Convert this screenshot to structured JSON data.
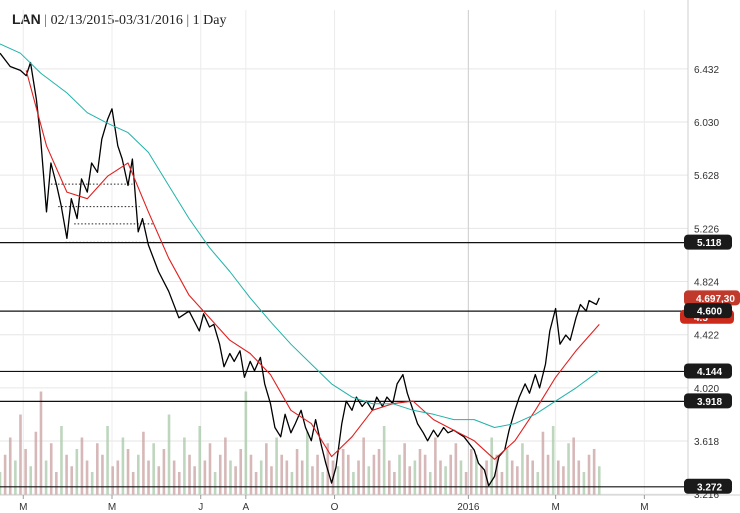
{
  "header": {
    "symbol": "LAN",
    "range": "02/13/2015-03/31/2016",
    "interval": "1 Day"
  },
  "chart_data": {
    "type": "line",
    "title": "LAN | 02/13/2015-03/31/2016 | 1 Day",
    "xlabel": "",
    "ylabel": "",
    "ylim": [
      3.21,
      6.65
    ],
    "grid": true,
    "x_tick_labels": [
      {
        "date": "2015-03-01",
        "label": "M"
      },
      {
        "date": "2015-05-01",
        "label": "M"
      },
      {
        "date": "2015-07-01",
        "label": "J"
      },
      {
        "date": "2015-08-01",
        "label": "A"
      },
      {
        "date": "2015-10-01",
        "label": "O"
      },
      {
        "date": "2016-01-01",
        "label": "2016"
      },
      {
        "date": "2016-03-01",
        "label": "M"
      },
      {
        "date": "2016-05-01",
        "label": "M"
      }
    ],
    "y_tick_labels": [
      "6.432",
      "6.030",
      "5.628",
      "5.226",
      "4.824",
      "4.422",
      "4.020",
      "3.618",
      "3.216"
    ],
    "y_ticks": [
      6.432,
      6.03,
      5.628,
      5.226,
      4.824,
      4.422,
      4.02,
      3.618,
      3.216
    ],
    "horizontal_levels": [
      {
        "value": 5.118,
        "label": "5.118",
        "color": "#111111"
      },
      {
        "value": 4.6,
        "label": "4.600",
        "color": "#111111"
      },
      {
        "value": 4.144,
        "label": "4.144",
        "color": "#111111"
      },
      {
        "value": 3.918,
        "label": "3.918",
        "color": "#111111"
      },
      {
        "value": 3.272,
        "label": "3.272",
        "color": "#111111"
      }
    ],
    "short_levels": [
      {
        "value": 5.56,
        "from": "2015-03-20",
        "to": "2015-05-15"
      },
      {
        "value": 5.39,
        "from": "2015-03-25",
        "to": "2015-05-20"
      },
      {
        "value": 5.26,
        "from": "2015-04-05",
        "to": "2015-05-30"
      },
      {
        "value": 5.12,
        "from": "2015-03-30",
        "to": "2015-05-30"
      }
    ],
    "last_price_label": "4.697,30",
    "last_price_color": "#c0392b",
    "hidden_value_label": "4.5",
    "series": [
      {
        "color": "#000000",
        "points": [
          [
            "2015-02-13",
            6.55
          ],
          [
            "2015-02-20",
            6.45
          ],
          [
            "2015-02-27",
            6.42
          ],
          [
            "2015-03-03",
            6.38
          ],
          [
            "2015-03-06",
            6.48
          ],
          [
            "2015-03-10",
            6.2
          ],
          [
            "2015-03-13",
            5.9
          ],
          [
            "2015-03-17",
            5.35
          ],
          [
            "2015-03-20",
            5.72
          ],
          [
            "2015-03-24",
            5.55
          ],
          [
            "2015-03-27",
            5.4
          ],
          [
            "2015-03-31",
            5.15
          ],
          [
            "2015-04-03",
            5.45
          ],
          [
            "2015-04-07",
            5.3
          ],
          [
            "2015-04-10",
            5.6
          ],
          [
            "2015-04-14",
            5.5
          ],
          [
            "2015-04-17",
            5.72
          ],
          [
            "2015-04-21",
            5.65
          ],
          [
            "2015-04-24",
            5.9
          ],
          [
            "2015-04-28",
            6.05
          ],
          [
            "2015-05-01",
            6.13
          ],
          [
            "2015-05-05",
            5.85
          ],
          [
            "2015-05-08",
            5.75
          ],
          [
            "2015-05-12",
            5.55
          ],
          [
            "2015-05-15",
            5.75
          ],
          [
            "2015-05-19",
            5.2
          ],
          [
            "2015-05-22",
            5.3
          ],
          [
            "2015-05-26",
            5.1
          ],
          [
            "2015-06-02",
            4.9
          ],
          [
            "2015-06-09",
            4.75
          ],
          [
            "2015-06-16",
            4.55
          ],
          [
            "2015-06-23",
            4.6
          ],
          [
            "2015-06-30",
            4.45
          ],
          [
            "2015-07-03",
            4.58
          ],
          [
            "2015-07-07",
            4.48
          ],
          [
            "2015-07-10",
            4.5
          ],
          [
            "2015-07-14",
            4.35
          ],
          [
            "2015-07-17",
            4.18
          ],
          [
            "2015-07-21",
            4.28
          ],
          [
            "2015-07-24",
            4.22
          ],
          [
            "2015-07-28",
            4.3
          ],
          [
            "2015-07-31",
            4.1
          ],
          [
            "2015-08-04",
            4.22
          ],
          [
            "2015-08-07",
            4.15
          ],
          [
            "2015-08-11",
            4.25
          ],
          [
            "2015-08-14",
            4.05
          ],
          [
            "2015-08-18",
            3.9
          ],
          [
            "2015-08-21",
            3.72
          ],
          [
            "2015-08-25",
            3.65
          ],
          [
            "2015-08-28",
            3.82
          ],
          [
            "2015-09-01",
            3.68
          ],
          [
            "2015-09-04",
            3.75
          ],
          [
            "2015-09-08",
            3.85
          ],
          [
            "2015-09-11",
            3.72
          ],
          [
            "2015-09-15",
            3.62
          ],
          [
            "2015-09-18",
            3.78
          ],
          [
            "2015-09-22",
            3.58
          ],
          [
            "2015-09-25",
            3.45
          ],
          [
            "2015-09-29",
            3.3
          ],
          [
            "2015-10-02",
            3.42
          ],
          [
            "2015-10-06",
            3.75
          ],
          [
            "2015-10-09",
            3.92
          ],
          [
            "2015-10-13",
            3.85
          ],
          [
            "2015-10-16",
            3.95
          ],
          [
            "2015-10-20",
            3.88
          ],
          [
            "2015-10-23",
            3.92
          ],
          [
            "2015-10-27",
            3.85
          ],
          [
            "2015-10-30",
            3.95
          ],
          [
            "2015-11-03",
            3.88
          ],
          [
            "2015-11-06",
            3.95
          ],
          [
            "2015-11-10",
            3.9
          ],
          [
            "2015-11-13",
            4.05
          ],
          [
            "2015-11-17",
            4.12
          ],
          [
            "2015-11-20",
            3.98
          ],
          [
            "2015-11-24",
            3.85
          ],
          [
            "2015-11-27",
            3.75
          ],
          [
            "2015-12-01",
            3.68
          ],
          [
            "2015-12-04",
            3.62
          ],
          [
            "2015-12-08",
            3.7
          ],
          [
            "2015-12-11",
            3.65
          ],
          [
            "2015-12-15",
            3.72
          ],
          [
            "2015-12-18",
            3.68
          ],
          [
            "2015-12-22",
            3.7
          ],
          [
            "2015-12-29",
            3.65
          ],
          [
            "2016-01-05",
            3.55
          ],
          [
            "2016-01-08",
            3.45
          ],
          [
            "2016-01-12",
            3.4
          ],
          [
            "2016-01-15",
            3.28
          ],
          [
            "2016-01-19",
            3.35
          ],
          [
            "2016-01-22",
            3.5
          ],
          [
            "2016-01-26",
            3.55
          ],
          [
            "2016-01-29",
            3.7
          ],
          [
            "2016-02-02",
            3.85
          ],
          [
            "2016-02-05",
            3.95
          ],
          [
            "2016-02-09",
            4.05
          ],
          [
            "2016-02-12",
            3.98
          ],
          [
            "2016-02-16",
            4.12
          ],
          [
            "2016-02-19",
            4.02
          ],
          [
            "2016-02-23",
            4.2
          ],
          [
            "2016-02-26",
            4.45
          ],
          [
            "2016-03-01",
            4.62
          ],
          [
            "2016-03-04",
            4.35
          ],
          [
            "2016-03-08",
            4.42
          ],
          [
            "2016-03-11",
            4.38
          ],
          [
            "2016-03-15",
            4.55
          ],
          [
            "2016-03-18",
            4.65
          ],
          [
            "2016-03-22",
            4.6
          ],
          [
            "2016-03-24",
            4.68
          ],
          [
            "2016-03-29",
            4.65
          ],
          [
            "2016-03-31",
            4.7
          ]
        ]
      },
      {
        "color": "#e02020",
        "points": [
          [
            "2015-03-03",
            6.42
          ],
          [
            "2015-03-17",
            5.85
          ],
          [
            "2015-03-31",
            5.5
          ],
          [
            "2015-04-14",
            5.45
          ],
          [
            "2015-04-28",
            5.62
          ],
          [
            "2015-05-12",
            5.72
          ],
          [
            "2015-05-26",
            5.35
          ],
          [
            "2015-06-09",
            5.0
          ],
          [
            "2015-06-23",
            4.72
          ],
          [
            "2015-07-07",
            4.55
          ],
          [
            "2015-07-21",
            4.38
          ],
          [
            "2015-08-04",
            4.28
          ],
          [
            "2015-08-18",
            4.12
          ],
          [
            "2015-09-01",
            3.85
          ],
          [
            "2015-09-15",
            3.75
          ],
          [
            "2015-09-29",
            3.5
          ],
          [
            "2015-10-13",
            3.65
          ],
          [
            "2015-10-27",
            3.85
          ],
          [
            "2015-11-10",
            3.9
          ],
          [
            "2015-11-24",
            3.92
          ],
          [
            "2015-12-08",
            3.78
          ],
          [
            "2015-12-22",
            3.7
          ],
          [
            "2016-01-05",
            3.62
          ],
          [
            "2016-01-19",
            3.48
          ],
          [
            "2016-02-02",
            3.62
          ],
          [
            "2016-02-16",
            3.85
          ],
          [
            "2016-03-01",
            4.1
          ],
          [
            "2016-03-15",
            4.3
          ],
          [
            "2016-03-31",
            4.5
          ]
        ]
      },
      {
        "color": "#20b2aa",
        "points": [
          [
            "2015-02-13",
            6.62
          ],
          [
            "2015-02-27",
            6.55
          ],
          [
            "2015-03-13",
            6.4
          ],
          [
            "2015-03-31",
            6.25
          ],
          [
            "2015-04-14",
            6.1
          ],
          [
            "2015-04-28",
            6.02
          ],
          [
            "2015-05-12",
            5.95
          ],
          [
            "2015-05-26",
            5.8
          ],
          [
            "2015-06-09",
            5.55
          ],
          [
            "2015-06-23",
            5.3
          ],
          [
            "2015-07-07",
            5.08
          ],
          [
            "2015-07-21",
            4.9
          ],
          [
            "2015-08-04",
            4.7
          ],
          [
            "2015-08-18",
            4.52
          ],
          [
            "2015-09-01",
            4.35
          ],
          [
            "2015-09-15",
            4.2
          ],
          [
            "2015-09-29",
            4.05
          ],
          [
            "2015-10-13",
            3.95
          ],
          [
            "2015-10-27",
            3.9
          ],
          [
            "2015-11-10",
            3.9
          ],
          [
            "2015-11-24",
            3.85
          ],
          [
            "2015-12-08",
            3.82
          ],
          [
            "2015-12-22",
            3.78
          ],
          [
            "2016-01-05",
            3.78
          ],
          [
            "2016-01-19",
            3.72
          ],
          [
            "2016-02-02",
            3.75
          ],
          [
            "2016-02-16",
            3.82
          ],
          [
            "2016-03-01",
            3.92
          ],
          [
            "2016-03-15",
            4.02
          ],
          [
            "2016-03-31",
            4.15
          ]
        ]
      }
    ],
    "volume": {
      "color": "#c9a0a0",
      "alt_color": "#a8c8a8",
      "relative": [
        0.2,
        0.35,
        0.5,
        0.3,
        0.7,
        0.4,
        0.25,
        0.55,
        0.9,
        0.3,
        0.45,
        0.2,
        0.6,
        0.35,
        0.25,
        0.4,
        0.5,
        0.3,
        0.2,
        0.45,
        0.35,
        0.6,
        0.25,
        0.3,
        0.5,
        0.4,
        0.2,
        0.35,
        0.55,
        0.3,
        0.45,
        0.25,
        0.4,
        0.7,
        0.3,
        0.2,
        0.5,
        0.35,
        0.25,
        0.6,
        0.3,
        0.45,
        0.2,
        0.35,
        0.5,
        0.3,
        0.25,
        0.4,
        0.9,
        0.35,
        0.2,
        0.3,
        0.45,
        0.25,
        0.5,
        0.35,
        0.3,
        0.2,
        0.4,
        0.3,
        0.55,
        0.25,
        0.35,
        0.2,
        0.45,
        0.3,
        0.25,
        0.4,
        0.35,
        0.2,
        0.3,
        0.5,
        0.25,
        0.35,
        0.4,
        0.6,
        0.3,
        0.2,
        0.35,
        0.45,
        0.25,
        0.3,
        0.4,
        0.35,
        0.2,
        0.5,
        0.3,
        0.25,
        0.35,
        0.45,
        0.3,
        0.2,
        0.4,
        0.35,
        0.25,
        0.3,
        0.5,
        0.35,
        0.2,
        0.4,
        0.3,
        0.25,
        0.45,
        0.35,
        0.3,
        0.2,
        0.55,
        0.35,
        0.6,
        0.3,
        0.25,
        0.45,
        0.5,
        0.3,
        0.2,
        0.35,
        0.4,
        0.25
      ]
    }
  }
}
